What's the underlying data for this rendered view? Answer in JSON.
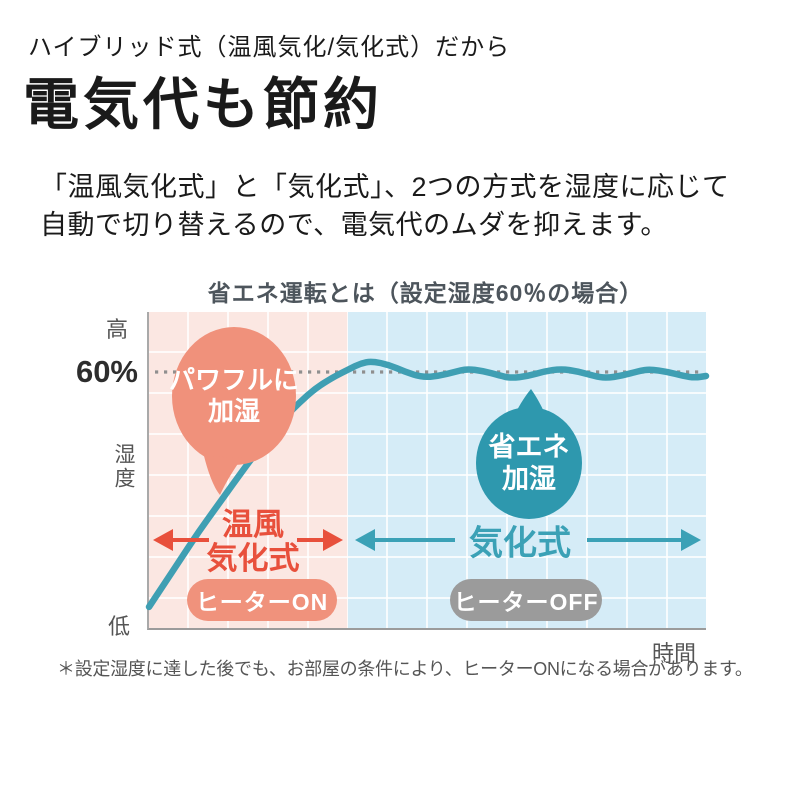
{
  "header": {
    "subtitle": "ハイブリッド式（温風気化/気化式）だから",
    "title": "電気代も節約"
  },
  "description": {
    "line1": "「温風気化式」と「気化式」、2つの方式を湿度に応じて",
    "line2": "自動で切り替えるので、電気代のムダを抑えます。"
  },
  "chart": {
    "title": "省エネ運転とは（設定湿度60％の場合）",
    "y_axis": {
      "high": "高",
      "setpoint": "60%",
      "name": "湿度",
      "low": "低"
    },
    "x_axis": {
      "label": "時間"
    },
    "warm": {
      "bubble_line1": "パワフルに",
      "bubble_line2": "加湿",
      "label_line1": "温風",
      "label_line2": "気化式",
      "badge": "ヒーターON"
    },
    "eco": {
      "bubble_line1": "省エネ",
      "bubble_line2": "加湿",
      "label": "気化式",
      "badge": "ヒーターOFF"
    },
    "footnote": "＊設定湿度に達した後でも、お部屋の条件により、ヒーターONになる場合があります。"
  },
  "theme": {
    "page-bg": "#ffffff",
    "text-dark": "#1a1a1a",
    "chart-title-color": "#4d555c",
    "axis-label-color": "#555555",
    "axis-line-color": "#a9a9a9",
    "axis-bottom-color": "#9b9b9b",
    "warm-zone-bg": "#fbe7e2",
    "eco-zone-bg": "#d5ecf7",
    "grid-line-color": "rgba(255,255,255,0.8)",
    "curve-color": "#3f9fb3",
    "setpoint-dot-color": "#8f8f8f",
    "warm-accent": "#e8503c",
    "warm-bubble-bg": "#f0917b",
    "warm-badge-bg": "#f0927c",
    "eco-accent": "#3ba1b6",
    "eco-bubble-bg": "#2e98ae",
    "eco-badge-bg": "#9b9b9b",
    "badge-text": "#ffffff",
    "footnote-color": "#555555"
  },
  "chart_data": {
    "type": "line",
    "title": "省エネ運転とは（設定湿度60％の場合）",
    "xlabel": "時間",
    "ylabel": "湿度",
    "y_tick_labels": [
      "高",
      "60%",
      "低"
    ],
    "setpoint_pct": 60,
    "ylim": [
      0,
      75
    ],
    "xlim_t": [
      0,
      100
    ],
    "grid": true,
    "zones": [
      {
        "label": "温風気化式",
        "badge": "ヒーターON",
        "annotation": "パワフルに加湿",
        "t_range": [
          0,
          36
        ]
      },
      {
        "label": "気化式",
        "badge": "ヒーターOFF",
        "annotation": "省エネ加湿",
        "t_range": [
          36,
          100
        ]
      }
    ],
    "series": [
      {
        "name": "湿度",
        "points": [
          [
            0,
            5
          ],
          [
            3,
            11
          ],
          [
            6,
            17
          ],
          [
            9,
            23
          ],
          [
            12,
            28.5
          ],
          [
            15,
            34
          ],
          [
            18,
            39.5
          ],
          [
            21,
            44.5
          ],
          [
            24,
            49.5
          ],
          [
            27,
            53.5
          ],
          [
            30,
            57
          ],
          [
            33,
            59.5
          ],
          [
            36,
            61.5
          ],
          [
            38,
            62.8
          ],
          [
            40,
            63.3
          ],
          [
            43,
            62.5
          ],
          [
            46,
            60.8
          ],
          [
            49,
            59.5
          ],
          [
            52,
            59.8
          ],
          [
            55,
            60.8
          ],
          [
            57,
            61.5
          ],
          [
            60,
            61
          ],
          [
            63,
            59.9
          ],
          [
            65,
            59.3
          ],
          [
            68,
            59.8
          ],
          [
            71,
            60.9
          ],
          [
            74,
            61.5
          ],
          [
            77,
            60.9
          ],
          [
            80,
            59.8
          ],
          [
            82,
            59.3
          ],
          [
            85,
            59.9
          ],
          [
            88,
            61
          ],
          [
            90,
            61.4
          ],
          [
            93,
            60.8
          ],
          [
            96,
            59.8
          ],
          [
            98,
            59.4
          ],
          [
            100,
            59.8
          ]
        ]
      }
    ]
  }
}
